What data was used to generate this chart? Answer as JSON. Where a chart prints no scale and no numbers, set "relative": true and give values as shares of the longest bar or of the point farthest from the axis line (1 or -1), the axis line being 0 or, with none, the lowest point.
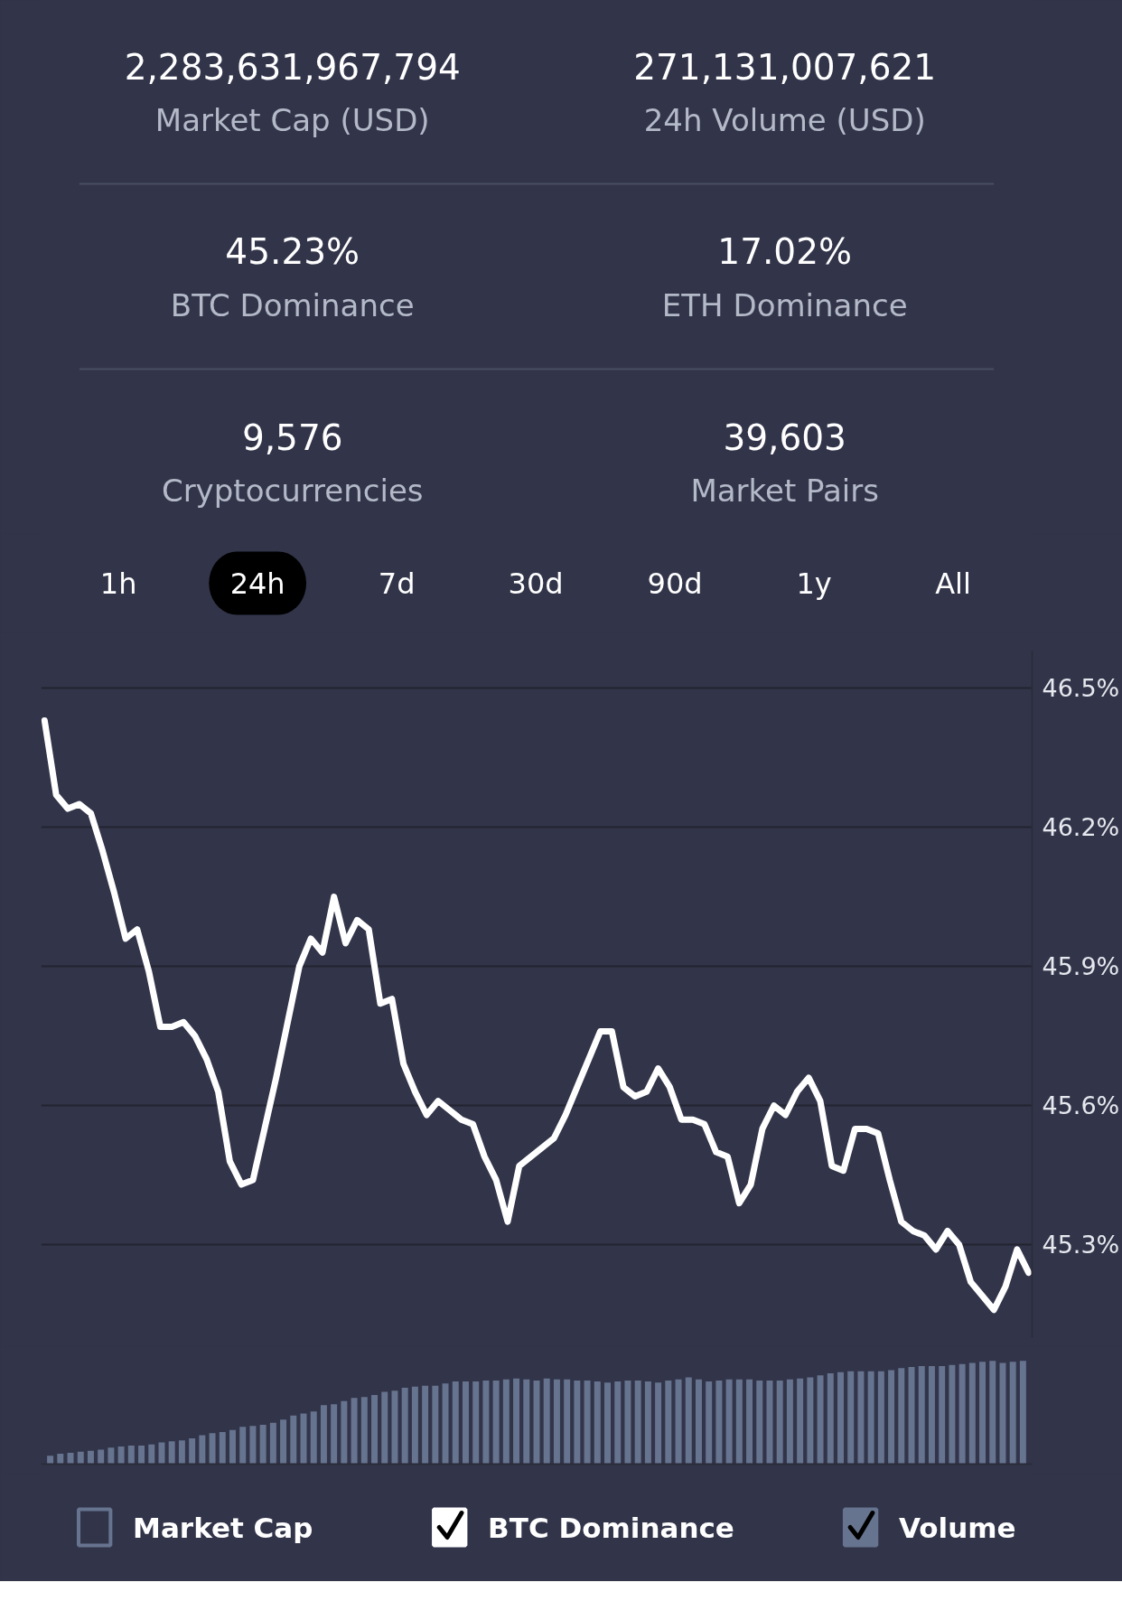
{
  "chart_data": [
    {
      "type": "other",
      "annotations": [
        "2,283,631,967,794",
        "Market Cap (USD)",
        "271,131,007,621",
        "24h Volume (USD)",
        "45.23%",
        "BTC Dominance",
        "17.02%",
        "ETH Dominance",
        "9,576",
        "Cryptocurrencies",
        "39,603",
        "Market Pairs"
      ]
    },
    {
      "type": "other",
      "categories": [
        "1h",
        "24h",
        "7d",
        "30d",
        "90d",
        "1y",
        "All"
      ],
      "colors": [
        null,
        "#000000",
        null,
        null,
        null,
        null,
        null
      ]
    },
    {
      "type": "line",
      "categories": [
        null,
        null,
        null,
        null,
        null,
        null,
        null,
        null,
        null,
        null,
        null,
        null,
        null,
        null,
        null,
        null,
        null,
        null,
        null,
        null,
        null,
        null,
        null,
        null,
        null,
        null,
        null,
        null,
        null,
        null,
        null,
        null,
        null,
        null,
        null,
        null,
        null,
        null,
        null,
        null,
        null,
        null,
        null,
        null,
        null,
        null,
        null,
        null,
        null,
        null,
        null,
        null,
        null,
        null,
        null,
        null,
        null,
        null,
        null,
        null,
        null,
        null,
        null,
        null,
        null,
        null,
        null,
        null,
        null,
        null,
        null,
        null,
        null,
        null,
        null,
        null,
        null,
        null,
        null,
        null,
        null,
        null,
        null,
        null,
        null,
        null
      ],
      "series": [
        {
          "color": "#ffffff",
          "values": [
            46.43,
            46.27,
            46.24,
            46.25,
            46.23,
            46.15,
            46.06,
            45.96,
            45.98,
            45.89,
            45.77,
            45.77,
            45.78,
            45.75,
            45.7,
            45.63,
            45.48,
            45.43,
            45.44,
            45.55,
            45.66,
            45.78,
            45.9,
            45.96,
            45.93,
            46.05,
            45.95,
            46.0,
            45.98,
            45.82,
            45.83,
            45.69,
            45.63,
            45.58,
            45.61,
            45.59,
            45.57,
            45.56,
            45.49,
            45.44,
            45.35,
            45.47,
            45.49,
            45.51,
            45.53,
            45.58,
            45.64,
            45.7,
            45.76,
            45.76,
            45.64,
            45.62,
            45.63,
            45.68,
            45.64,
            45.57,
            45.57,
            45.56,
            45.5,
            45.49,
            45.39,
            45.43,
            45.55,
            45.6,
            45.58,
            45.63,
            45.66,
            45.61,
            45.47,
            45.46,
            45.55,
            45.55,
            45.54,
            45.44,
            45.35,
            45.33,
            45.32,
            45.29,
            45.33,
            45.3,
            45.22,
            45.19,
            45.16,
            45.21,
            45.29,
            45.24
          ]
        }
      ],
      "ylim": [
        45.1,
        46.58
      ],
      "yticks": [
        {
          "value": 45.3,
          "label": "45.3%"
        },
        {
          "value": 45.6,
          "label": "45.6%"
        },
        {
          "value": 45.9,
          "label": "45.9%"
        },
        {
          "value": 46.2,
          "label": "46.2%"
        },
        {
          "value": 46.5,
          "label": "46.5%"
        }
      ],
      "grid": "y",
      "tick_labels": "y"
    },
    {
      "type": "bar",
      "relative": true,
      "color": "#67748f",
      "categories": [
        null,
        null,
        null,
        null,
        null,
        null,
        null,
        null,
        null,
        null,
        null,
        null,
        null,
        null,
        null,
        null,
        null,
        null,
        null,
        null,
        null,
        null,
        null,
        null,
        null,
        null,
        null,
        null,
        null,
        null,
        null,
        null,
        null,
        null,
        null,
        null,
        null,
        null,
        null,
        null,
        null,
        null,
        null,
        null,
        null,
        null,
        null,
        null,
        null,
        null,
        null,
        null,
        null,
        null,
        null,
        null,
        null,
        null,
        null,
        null,
        null,
        null,
        null,
        null,
        null,
        null,
        null,
        null,
        null,
        null,
        null,
        null,
        null,
        null,
        null,
        null,
        null,
        null,
        null,
        null,
        null,
        null,
        null,
        null,
        null,
        null,
        null,
        null,
        null,
        null,
        null,
        null,
        null,
        null,
        null,
        null,
        null
      ],
      "values": [
        0.08,
        0.1,
        0.11,
        0.12,
        0.13,
        0.14,
        0.16,
        0.17,
        0.18,
        0.18,
        0.19,
        0.21,
        0.22,
        0.23,
        0.25,
        0.28,
        0.3,
        0.31,
        0.33,
        0.36,
        0.37,
        0.38,
        0.4,
        0.43,
        0.47,
        0.49,
        0.51,
        0.57,
        0.58,
        0.61,
        0.64,
        0.65,
        0.67,
        0.7,
        0.71,
        0.74,
        0.75,
        0.76,
        0.76,
        0.78,
        0.8,
        0.8,
        0.8,
        0.81,
        0.81,
        0.82,
        0.83,
        0.82,
        0.81,
        0.83,
        0.82,
        0.82,
        0.81,
        0.81,
        0.8,
        0.79,
        0.8,
        0.81,
        0.81,
        0.8,
        0.79,
        0.81,
        0.82,
        0.84,
        0.82,
        0.8,
        0.81,
        0.82,
        0.82,
        0.82,
        0.81,
        0.81,
        0.81,
        0.82,
        0.83,
        0.84,
        0.86,
        0.88,
        0.89,
        0.9,
        0.9,
        0.9,
        0.9,
        0.91,
        0.93,
        0.94,
        0.95,
        0.95,
        0.95,
        0.96,
        0.97,
        0.98,
        0.99,
        1,
        0.98,
        0.99,
        1
      ]
    },
    {
      "type": "other",
      "categories": [
        "Market Cap",
        "BTC Dominance",
        "Volume"
      ],
      "colors": [
        null,
        "#ffffff",
        "#67748f"
      ]
    }
  ]
}
